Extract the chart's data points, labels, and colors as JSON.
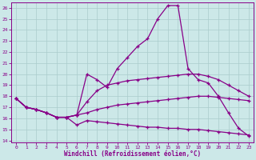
{
  "xlabel": "Windchill (Refroidissement éolien,°C)",
  "bg_color": "#cce8e8",
  "line_color": "#880088",
  "xlim": [
    -0.5,
    23.5
  ],
  "ylim": [
    13.8,
    26.5
  ],
  "xticks": [
    0,
    1,
    2,
    3,
    4,
    5,
    6,
    7,
    8,
    9,
    10,
    11,
    12,
    13,
    14,
    15,
    16,
    17,
    18,
    19,
    20,
    21,
    22,
    23
  ],
  "yticks": [
    14,
    15,
    16,
    17,
    18,
    19,
    20,
    21,
    22,
    23,
    24,
    25,
    26
  ],
  "lines": [
    [
      17.8,
      17.0,
      16.8,
      16.5,
      16.1,
      16.1,
      15.4,
      15.8,
      15.7,
      15.6,
      15.5,
      15.4,
      15.3,
      15.2,
      15.2,
      15.1,
      15.1,
      15.0,
      15.0,
      14.9,
      14.8,
      14.7,
      14.6,
      14.5
    ],
    [
      17.8,
      17.0,
      16.8,
      16.5,
      16.1,
      16.1,
      16.3,
      16.5,
      16.8,
      17.0,
      17.2,
      17.3,
      17.4,
      17.5,
      17.6,
      17.7,
      17.8,
      17.9,
      18.0,
      18.0,
      17.9,
      17.8,
      17.7,
      17.6
    ],
    [
      17.8,
      17.0,
      16.8,
      16.5,
      16.1,
      16.1,
      16.3,
      17.5,
      18.5,
      19.0,
      19.2,
      19.4,
      19.5,
      19.6,
      19.7,
      19.8,
      19.9,
      20.0,
      20.0,
      19.8,
      19.5,
      19.0,
      18.5,
      18.0
    ],
    [
      17.8,
      17.0,
      16.8,
      16.5,
      16.1,
      16.1,
      16.3,
      20.0,
      19.5,
      18.8,
      20.5,
      21.5,
      22.5,
      23.2,
      25.0,
      26.2,
      26.2,
      20.5,
      19.5,
      19.2,
      18.0,
      16.5,
      15.1,
      14.4
    ]
  ]
}
